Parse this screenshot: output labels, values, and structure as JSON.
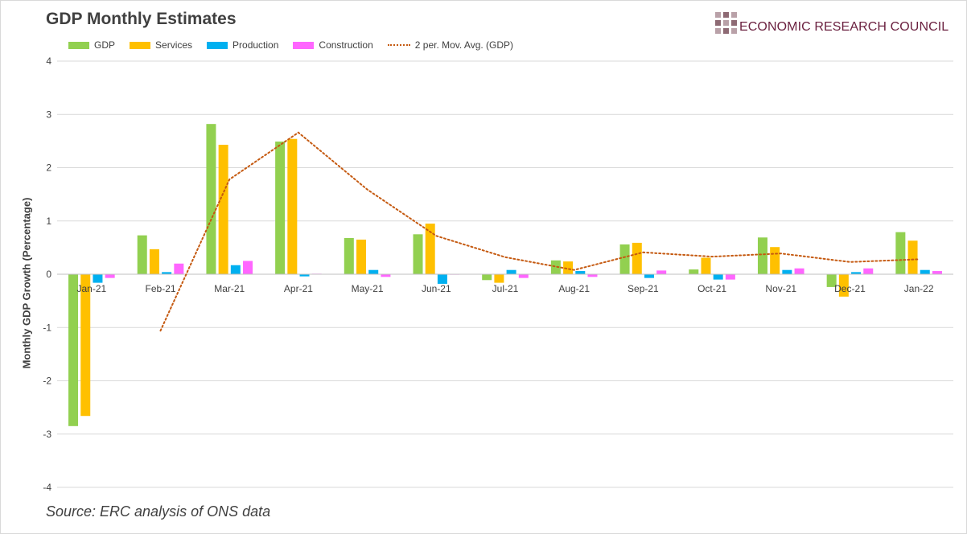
{
  "logo": {
    "text": "ECONOMIC RESEARCH COUNCIL",
    "color": "#6b2140"
  },
  "source": "Source: ERC analysis of ONS data",
  "chart_data": {
    "type": "bar",
    "title": "GDP Monthly Estimates",
    "xlabel": "",
    "ylabel": "Monthly GDP Growth (Percentage)",
    "ylim": [
      -4,
      4
    ],
    "yticks": [
      4,
      3,
      2,
      1,
      0,
      -1,
      -2,
      -3,
      -4
    ],
    "grid": true,
    "legend_position": "top-left",
    "categories": [
      "Jan-21",
      "Feb-21",
      "Mar-21",
      "Apr-21",
      "May-21",
      "Jun-21",
      "Jul-21",
      "Aug-21",
      "Sep-21",
      "Oct-21",
      "Nov-21",
      "Dec-21",
      "Jan-22"
    ],
    "series": [
      {
        "name": "GDP",
        "color": "#92d050",
        "values": [
          -2.85,
          0.73,
          2.82,
          2.49,
          0.68,
          0.75,
          -0.11,
          0.26,
          0.56,
          0.09,
          0.69,
          -0.24,
          0.79
        ]
      },
      {
        "name": "Services",
        "color": "#ffc000",
        "values": [
          -2.66,
          0.47,
          2.43,
          2.54,
          0.65,
          0.95,
          -0.16,
          0.24,
          0.59,
          0.31,
          0.51,
          -0.42,
          0.63
        ]
      },
      {
        "name": "Production",
        "color": "#00b0f0",
        "values": [
          -0.16,
          0.04,
          0.17,
          -0.04,
          0.08,
          -0.18,
          0.08,
          0.06,
          -0.07,
          -0.1,
          0.08,
          0.04,
          0.08
        ]
      },
      {
        "name": "Construction",
        "color": "#ff66ff",
        "values": [
          -0.07,
          0.2,
          0.25,
          0.01,
          -0.05,
          0.0,
          -0.07,
          -0.05,
          0.07,
          -0.1,
          0.11,
          0.11,
          0.06
        ]
      }
    ],
    "trendline": {
      "name": "2 per. Mov. Avg. (GDP)",
      "color": "#c55a11",
      "style": "dotted",
      "values": [
        null,
        -1.06,
        1.78,
        2.66,
        1.59,
        0.72,
        0.32,
        0.08,
        0.41,
        0.33,
        0.39,
        0.23,
        0.28
      ]
    }
  }
}
